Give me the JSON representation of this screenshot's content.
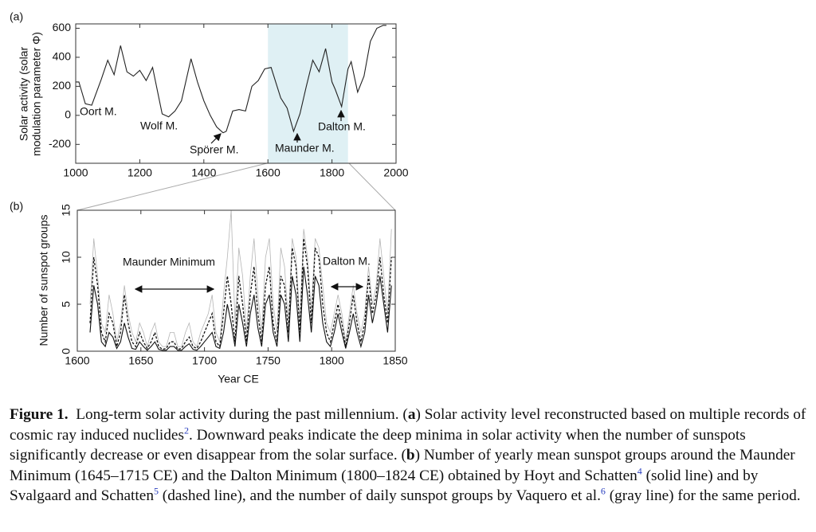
{
  "chart_data": [
    {
      "type": "line",
      "panel_label": "(a)",
      "ylabel": [
        "Solar activity (solar",
        "modulation parameter Φ)"
      ],
      "x": [
        1000,
        1010,
        1030,
        1050,
        1080,
        1100,
        1120,
        1140,
        1160,
        1180,
        1200,
        1220,
        1240,
        1270,
        1290,
        1310,
        1330,
        1360,
        1380,
        1400,
        1420,
        1440,
        1460,
        1470,
        1490,
        1510,
        1530,
        1550,
        1570,
        1590,
        1610,
        1640,
        1660,
        1680,
        1700,
        1720,
        1740,
        1760,
        1780,
        1800,
        1810,
        1830,
        1850,
        1860,
        1880,
        1900,
        1920,
        1940,
        1960,
        1970
      ],
      "series": [
        {
          "color": "#222222",
          "line_style": "solid",
          "values": [
            230,
            230,
            80,
            70,
            250,
            380,
            280,
            480,
            300,
            270,
            310,
            240,
            330,
            10,
            -10,
            30,
            100,
            390,
            230,
            100,
            0,
            -80,
            -120,
            -110,
            30,
            40,
            30,
            200,
            240,
            320,
            330,
            120,
            50,
            -110,
            10,
            200,
            380,
            300,
            460,
            230,
            180,
            60,
            320,
            370,
            160,
            270,
            510,
            600,
            620,
            620
          ]
        }
      ],
      "xlim": [
        1000,
        2000
      ],
      "xticks": [
        1000,
        1200,
        1400,
        1600,
        1800,
        2000
      ],
      "ylim": [
        -330,
        630
      ],
      "yticks": [
        -200,
        0,
        200,
        400,
        600
      ],
      "shaded_span": [
        1600,
        1850
      ],
      "shade_color": "#dff0f4",
      "annotations": [
        "Oort M.",
        "Wolf M.",
        "Spörer M.",
        "Maunder M.",
        "Dalton M."
      ]
    },
    {
      "type": "line",
      "panel_label": "(b)",
      "ylabel": "Number of sunspot groups",
      "xlabel": "Year CE",
      "x": [
        1610,
        1613,
        1616,
        1619,
        1622,
        1625,
        1628,
        1631,
        1634,
        1637,
        1640,
        1643,
        1646,
        1649,
        1652,
        1655,
        1658,
        1661,
        1664,
        1667,
        1670,
        1673,
        1676,
        1679,
        1682,
        1685,
        1688,
        1691,
        1694,
        1697,
        1700,
        1703,
        1706,
        1709,
        1712,
        1715,
        1718,
        1721,
        1724,
        1727,
        1730,
        1733,
        1736,
        1739,
        1742,
        1745,
        1748,
        1751,
        1754,
        1757,
        1760,
        1763,
        1766,
        1769,
        1772,
        1775,
        1778,
        1781,
        1784,
        1787,
        1790,
        1793,
        1796,
        1799,
        1802,
        1805,
        1808,
        1811,
        1814,
        1817,
        1820,
        1823,
        1826,
        1829,
        1832,
        1835,
        1838,
        1841,
        1844,
        1847
      ],
      "series": [
        {
          "color": "#b5b5b5",
          "line_style": "thin",
          "values": [
            5,
            12,
            8,
            3,
            2,
            6,
            4,
            1,
            3,
            7,
            4,
            2,
            1,
            3,
            2,
            0.5,
            2,
            3,
            1,
            0.5,
            0.5,
            2,
            2,
            0.5,
            0.5,
            2,
            3,
            1,
            0.5,
            2,
            3,
            4,
            6,
            2,
            1,
            6,
            10,
            15,
            3,
            11,
            8,
            2,
            8,
            12,
            6,
            2,
            10,
            12,
            5,
            2,
            11,
            9,
            3,
            12,
            10,
            3,
            13,
            10,
            4,
            12,
            11,
            7,
            3,
            2,
            4,
            6,
            4,
            1,
            4,
            7,
            4,
            2,
            4,
            9,
            5,
            7,
            12,
            8,
            4,
            13
          ]
        },
        {
          "color": "#111111",
          "line_style": "solid",
          "values": [
            2,
            7,
            5,
            1,
            0.5,
            2,
            1.5,
            0.3,
            1,
            3,
            1.5,
            0.3,
            0.2,
            1,
            0.5,
            0.1,
            0.5,
            1,
            0.2,
            0.1,
            0.1,
            0.5,
            0.5,
            0.1,
            0.1,
            0.5,
            0.8,
            0.2,
            0.1,
            0.5,
            1,
            1.5,
            2,
            0.5,
            0.3,
            2,
            5,
            3,
            0.5,
            5,
            3,
            0.5,
            4,
            6,
            2.5,
            0.5,
            5,
            6,
            2,
            0.5,
            6,
            5,
            1,
            8,
            6,
            1,
            9,
            6,
            2,
            8,
            7,
            3,
            1,
            0.5,
            2,
            4,
            2,
            0.3,
            2,
            4,
            2,
            0.5,
            2,
            6,
            3,
            5,
            8,
            5,
            2,
            7
          ]
        },
        {
          "color": "#111111",
          "line_style": "dashed",
          "values": [
            3,
            10,
            7,
            2,
            1,
            4,
            3,
            0.5,
            2,
            6,
            3,
            1,
            0.5,
            2,
            1,
            0.3,
            1,
            2,
            0.5,
            0.2,
            0.3,
            1,
            1,
            0.2,
            0.3,
            1,
            1.5,
            0.5,
            0.3,
            1,
            2,
            3,
            4,
            1,
            0.5,
            4,
            8,
            5,
            1,
            8,
            5,
            1,
            6,
            9,
            4,
            1,
            7,
            9,
            3,
            1,
            8,
            7,
            2,
            11,
            9,
            2,
            12,
            9,
            3,
            11,
            10,
            5,
            2,
            1,
            3,
            5,
            3,
            0.5,
            3,
            6,
            3,
            1,
            3,
            8,
            4,
            6,
            10,
            6,
            3,
            10
          ]
        }
      ],
      "xlim": [
        1600,
        1850
      ],
      "xticks": [
        1600,
        1650,
        1700,
        1750,
        1800,
        1850
      ],
      "ylim": [
        0,
        15
      ],
      "yticks": [
        0,
        5,
        10,
        15
      ],
      "annotations": [
        "Maunder Minimum",
        "Dalton M."
      ]
    }
  ],
  "caption": {
    "label": "Figure 1.",
    "segments": [
      "Long-term solar activity during the past millennium. (",
      "a",
      ") Solar activity level reconstructed based on multiple records of cosmic ray induced nuclides",
      "2",
      ". Downward peaks indicate the deep minima in solar activity when the number of sunspots significantly decrease or even disappear from the solar surface. (",
      "b",
      ") Number of yearly mean sunspot groups around the Maunder Minimum (1645–1715 CE) and the Dalton Minimum (1800–1824 CE) obtained by Hoyt and Schatten",
      "4",
      " (solid line) and by Svalgaard and Schatten",
      "5",
      " (dashed line), and the number of daily sunspot groups by Vaquero et al.",
      "6",
      " (gray line) for the same period."
    ]
  }
}
